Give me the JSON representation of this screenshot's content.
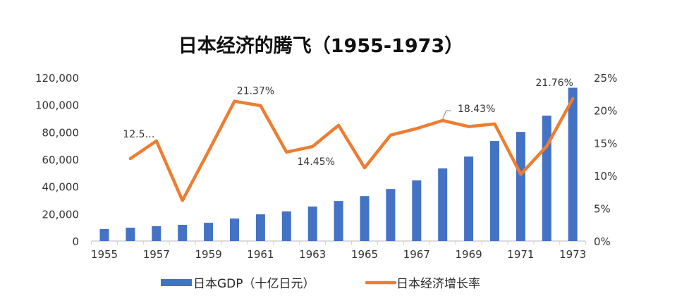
{
  "chart_data": {
    "type": "bar+line",
    "title": "日本经济的腾飞（1955-1973）",
    "categories": [
      "1955",
      "1956",
      "1957",
      "1958",
      "1959",
      "1960",
      "1961",
      "1962",
      "1963",
      "1964",
      "1965",
      "1966",
      "1967",
      "1968",
      "1969",
      "1970",
      "1971",
      "1972",
      "1973"
    ],
    "x_tick_labels": [
      "1955",
      "1957",
      "1959",
      "1961",
      "1963",
      "1965",
      "1967",
      "1969",
      "1971",
      "1973"
    ],
    "series": [
      {
        "name": "日本GDP（十亿日元）",
        "type": "bar",
        "axis": "left",
        "color": "#4472C4",
        "values": [
          8800,
          9800,
          10900,
          11900,
          13400,
          16500,
          19600,
          21700,
          25300,
          29400,
          33000,
          38200,
          44500,
          53300,
          62000,
          73400,
          80100,
          92000,
          112500
        ]
      },
      {
        "name": "日本经济增长率",
        "type": "line",
        "axis": "right",
        "color": "#ED7D31",
        "values": [
          null,
          12.6,
          15.3,
          6.2,
          13.7,
          21.37,
          20.7,
          13.6,
          14.45,
          17.7,
          11.2,
          16.2,
          17.2,
          18.43,
          17.5,
          17.9,
          10.2,
          14.5,
          21.76
        ]
      }
    ],
    "data_labels": [
      {
        "index": 1,
        "text": "12.5…"
      },
      {
        "index": 5,
        "text": "21.37%"
      },
      {
        "index": 8,
        "text": "14.45%"
      },
      {
        "index": 13,
        "text": "18.43%"
      },
      {
        "index": 18,
        "text": "21.76%"
      }
    ],
    "left_axis": {
      "ticks": [
        "0",
        "20,000",
        "40,000",
        "60,000",
        "80,000",
        "100,000",
        "120,000"
      ],
      "ylim": [
        0,
        120000
      ]
    },
    "right_axis": {
      "ticks": [
        "0%",
        "5%",
        "10%",
        "15%",
        "20%",
        "25%"
      ],
      "ylim": [
        0,
        25
      ]
    },
    "xlabel": "",
    "ylabel": "",
    "grid": false,
    "legend_position": "bottom"
  },
  "legend": {
    "gdp_label": "日本GDP（十亿日元）",
    "growth_label": "日本经济增长率"
  }
}
